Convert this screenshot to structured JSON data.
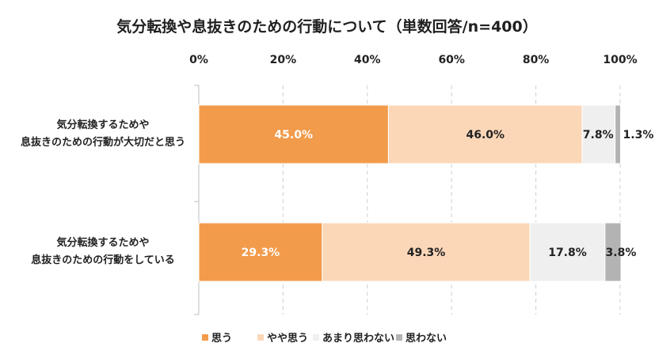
{
  "chart_data": {
    "type": "bar",
    "orientation": "horizontal-stacked-100",
    "title": "気分転換や息抜きのための行動について（単数回答/n=400）",
    "xlim": [
      0,
      100
    ],
    "x_ticks": [
      "0%",
      "20%",
      "40%",
      "60%",
      "80%",
      "100%"
    ],
    "grid": "vertical",
    "legend_position": "bottom",
    "categories": [
      [
        "気分転換するためや",
        "息抜きのための行動が大切だと思う"
      ],
      [
        "気分転換するためや",
        "息抜きのための行動をしている"
      ]
    ],
    "series": [
      {
        "name": "思う",
        "color": "#f29b4b",
        "label_color": "#ffffff",
        "values": [
          45.0,
          29.3
        ],
        "labels": [
          "45.0%",
          "29.3%"
        ]
      },
      {
        "name": "やや思う",
        "color": "#fbd7b8",
        "label_color": "#222222",
        "values": [
          46.0,
          49.3
        ],
        "labels": [
          "46.0%",
          "49.3%"
        ]
      },
      {
        "name": "あまり思わない",
        "color": "#efefef",
        "label_color": "#222222",
        "values": [
          7.8,
          17.8
        ],
        "labels": [
          "7.8%",
          "17.8%"
        ]
      },
      {
        "name": "思わない",
        "color": "#b3b3b3",
        "label_color": "#222222",
        "values": [
          1.3,
          3.8
        ],
        "labels": [
          "1.3%",
          "3.8%"
        ]
      }
    ]
  }
}
